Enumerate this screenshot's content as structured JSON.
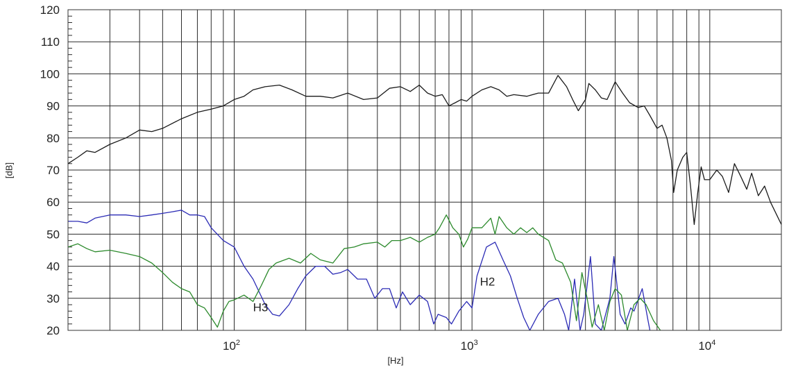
{
  "chart_data": {
    "type": "line",
    "xlabel": "[Hz]",
    "ylabel": "[dB]",
    "xscale": "log",
    "xlim": [
      20,
      20000
    ],
    "ylim": [
      20,
      120
    ],
    "grid": true,
    "y_ticks": [
      "20",
      "30",
      "40",
      "50",
      "60",
      "70",
      "80",
      "90",
      "100",
      "110",
      "120"
    ],
    "x_ticks": [
      {
        "base": "10",
        "exp": "2",
        "value": 100
      },
      {
        "base": "10",
        "exp": "3",
        "value": 1000
      },
      {
        "base": "10",
        "exp": "4",
        "value": 10000
      }
    ],
    "annotations": [
      {
        "text": "H3",
        "x": 120,
        "y": 26
      },
      {
        "text": "H2",
        "x": 1080,
        "y": 34
      }
    ],
    "series": [
      {
        "color": "#1a1a1a",
        "points": [
          [
            20,
            72
          ],
          [
            22,
            74
          ],
          [
            24,
            76
          ],
          [
            26,
            75.5
          ],
          [
            30,
            78
          ],
          [
            35,
            80
          ],
          [
            40,
            82.5
          ],
          [
            45,
            82
          ],
          [
            50,
            83
          ],
          [
            60,
            86
          ],
          [
            70,
            88
          ],
          [
            80,
            89
          ],
          [
            90,
            90
          ],
          [
            100,
            92
          ],
          [
            110,
            93
          ],
          [
            120,
            95
          ],
          [
            135,
            96
          ],
          [
            155,
            96.5
          ],
          [
            175,
            95
          ],
          [
            200,
            93
          ],
          [
            230,
            93
          ],
          [
            260,
            92.5
          ],
          [
            300,
            94
          ],
          [
            350,
            92
          ],
          [
            400,
            92.5
          ],
          [
            450,
            95.5
          ],
          [
            500,
            96
          ],
          [
            550,
            94.5
          ],
          [
            600,
            96.5
          ],
          [
            650,
            94
          ],
          [
            700,
            93
          ],
          [
            750,
            93.5
          ],
          [
            800,
            90
          ],
          [
            850,
            91
          ],
          [
            900,
            92
          ],
          [
            950,
            91.5
          ],
          [
            1000,
            93
          ],
          [
            1100,
            95
          ],
          [
            1200,
            96
          ],
          [
            1300,
            95
          ],
          [
            1400,
            93
          ],
          [
            1500,
            93.5
          ],
          [
            1700,
            93
          ],
          [
            1900,
            94
          ],
          [
            2000,
            94
          ],
          [
            2100,
            94
          ],
          [
            2300,
            99.5
          ],
          [
            2500,
            96
          ],
          [
            2650,
            92
          ],
          [
            2800,
            88.5
          ],
          [
            3000,
            92
          ],
          [
            3100,
            97
          ],
          [
            3300,
            95
          ],
          [
            3500,
            92.5
          ],
          [
            3700,
            92
          ],
          [
            4000,
            97.5
          ],
          [
            4300,
            94
          ],
          [
            4600,
            91
          ],
          [
            5000,
            89.5
          ],
          [
            5300,
            90
          ],
          [
            5600,
            87
          ],
          [
            6000,
            83
          ],
          [
            6300,
            84
          ],
          [
            6600,
            80
          ],
          [
            6900,
            73
          ],
          [
            7050,
            63
          ],
          [
            7300,
            70
          ],
          [
            7700,
            74
          ],
          [
            8000,
            75.5
          ],
          [
            8300,
            65
          ],
          [
            8600,
            53
          ],
          [
            8900,
            63
          ],
          [
            9200,
            71
          ],
          [
            9500,
            67
          ],
          [
            10000,
            67
          ],
          [
            10700,
            70
          ],
          [
            11300,
            68
          ],
          [
            12000,
            63
          ],
          [
            12700,
            72
          ],
          [
            13500,
            68
          ],
          [
            14300,
            64
          ],
          [
            15000,
            69
          ],
          [
            16000,
            62
          ],
          [
            17000,
            65
          ],
          [
            18000,
            60
          ],
          [
            20000,
            53
          ]
        ]
      },
      {
        "color": "#2b2bb5",
        "points": [
          [
            20,
            54
          ],
          [
            22,
            54
          ],
          [
            24,
            53.5
          ],
          [
            26,
            55
          ],
          [
            30,
            56
          ],
          [
            35,
            56
          ],
          [
            40,
            55.5
          ],
          [
            45,
            56
          ],
          [
            50,
            56.5
          ],
          [
            55,
            57
          ],
          [
            60,
            57.5
          ],
          [
            65,
            56
          ],
          [
            70,
            56
          ],
          [
            75,
            55.5
          ],
          [
            80,
            52
          ],
          [
            90,
            48
          ],
          [
            100,
            46
          ],
          [
            110,
            40
          ],
          [
            120,
            36
          ],
          [
            135,
            28
          ],
          [
            145,
            25
          ],
          [
            155,
            24.5
          ],
          [
            170,
            28
          ],
          [
            185,
            33
          ],
          [
            200,
            37
          ],
          [
            220,
            40
          ],
          [
            240,
            40
          ],
          [
            260,
            37.5
          ],
          [
            280,
            38
          ],
          [
            300,
            39
          ],
          [
            330,
            36
          ],
          [
            360,
            36
          ],
          [
            390,
            30
          ],
          [
            420,
            33
          ],
          [
            450,
            33
          ],
          [
            480,
            27
          ],
          [
            510,
            32
          ],
          [
            550,
            28
          ],
          [
            600,
            31
          ],
          [
            650,
            29
          ],
          [
            690,
            22
          ],
          [
            720,
            25
          ],
          [
            780,
            24
          ],
          [
            820,
            22
          ],
          [
            880,
            26
          ],
          [
            950,
            29
          ],
          [
            1000,
            27
          ],
          [
            1050,
            37
          ],
          [
            1150,
            46
          ],
          [
            1250,
            47.5
          ],
          [
            1350,
            42
          ],
          [
            1450,
            37
          ],
          [
            1550,
            30
          ],
          [
            1650,
            24
          ],
          [
            1750,
            20
          ],
          [
            1900,
            25
          ],
          [
            2100,
            29
          ],
          [
            2300,
            30
          ],
          [
            2450,
            25
          ],
          [
            2550,
            20
          ],
          [
            2700,
            36
          ],
          [
            2850,
            20
          ],
          [
            2950,
            25
          ],
          [
            3150,
            43
          ],
          [
            3300,
            22
          ],
          [
            3500,
            20
          ],
          [
            3800,
            30
          ],
          [
            3950,
            43
          ],
          [
            4200,
            25
          ],
          [
            4400,
            22
          ],
          [
            4650,
            27
          ],
          [
            4800,
            26
          ],
          [
            5200,
            33
          ],
          [
            5500,
            23
          ],
          [
            5600,
            20
          ]
        ]
      },
      {
        "color": "#2c8a2c",
        "points": [
          [
            20,
            46
          ],
          [
            22,
            47
          ],
          [
            24,
            45.5
          ],
          [
            26,
            44.5
          ],
          [
            30,
            45
          ],
          [
            35,
            44
          ],
          [
            40,
            43
          ],
          [
            45,
            41
          ],
          [
            50,
            38
          ],
          [
            55,
            35
          ],
          [
            60,
            33
          ],
          [
            65,
            32
          ],
          [
            70,
            28
          ],
          [
            75,
            27
          ],
          [
            80,
            24
          ],
          [
            85,
            21
          ],
          [
            90,
            26
          ],
          [
            95,
            29
          ],
          [
            100,
            29.5
          ],
          [
            110,
            31
          ],
          [
            120,
            29
          ],
          [
            130,
            34
          ],
          [
            140,
            39
          ],
          [
            150,
            41
          ],
          [
            170,
            42.5
          ],
          [
            190,
            41
          ],
          [
            210,
            44
          ],
          [
            230,
            42
          ],
          [
            260,
            41
          ],
          [
            290,
            45.5
          ],
          [
            320,
            46
          ],
          [
            350,
            47
          ],
          [
            400,
            47.5
          ],
          [
            430,
            46
          ],
          [
            460,
            48
          ],
          [
            500,
            48
          ],
          [
            550,
            49
          ],
          [
            600,
            47.5
          ],
          [
            650,
            49
          ],
          [
            700,
            50
          ],
          [
            730,
            52
          ],
          [
            780,
            56
          ],
          [
            830,
            52
          ],
          [
            880,
            50
          ],
          [
            920,
            46
          ],
          [
            960,
            48.5
          ],
          [
            1000,
            52
          ],
          [
            1100,
            52
          ],
          [
            1200,
            55
          ],
          [
            1250,
            50
          ],
          [
            1300,
            55.5
          ],
          [
            1400,
            52
          ],
          [
            1500,
            50
          ],
          [
            1600,
            52
          ],
          [
            1700,
            50.5
          ],
          [
            1800,
            52
          ],
          [
            1900,
            50
          ],
          [
            2100,
            48
          ],
          [
            2250,
            42
          ],
          [
            2400,
            41
          ],
          [
            2600,
            35
          ],
          [
            2750,
            23
          ],
          [
            2900,
            38
          ],
          [
            3050,
            30
          ],
          [
            3200,
            21
          ],
          [
            3400,
            28
          ],
          [
            3600,
            20
          ],
          [
            3800,
            29
          ],
          [
            4000,
            33
          ],
          [
            4250,
            31
          ],
          [
            4500,
            20
          ],
          [
            4800,
            28
          ],
          [
            5100,
            30
          ],
          [
            5400,
            28
          ],
          [
            5800,
            23
          ],
          [
            6200,
            20
          ]
        ]
      }
    ]
  }
}
